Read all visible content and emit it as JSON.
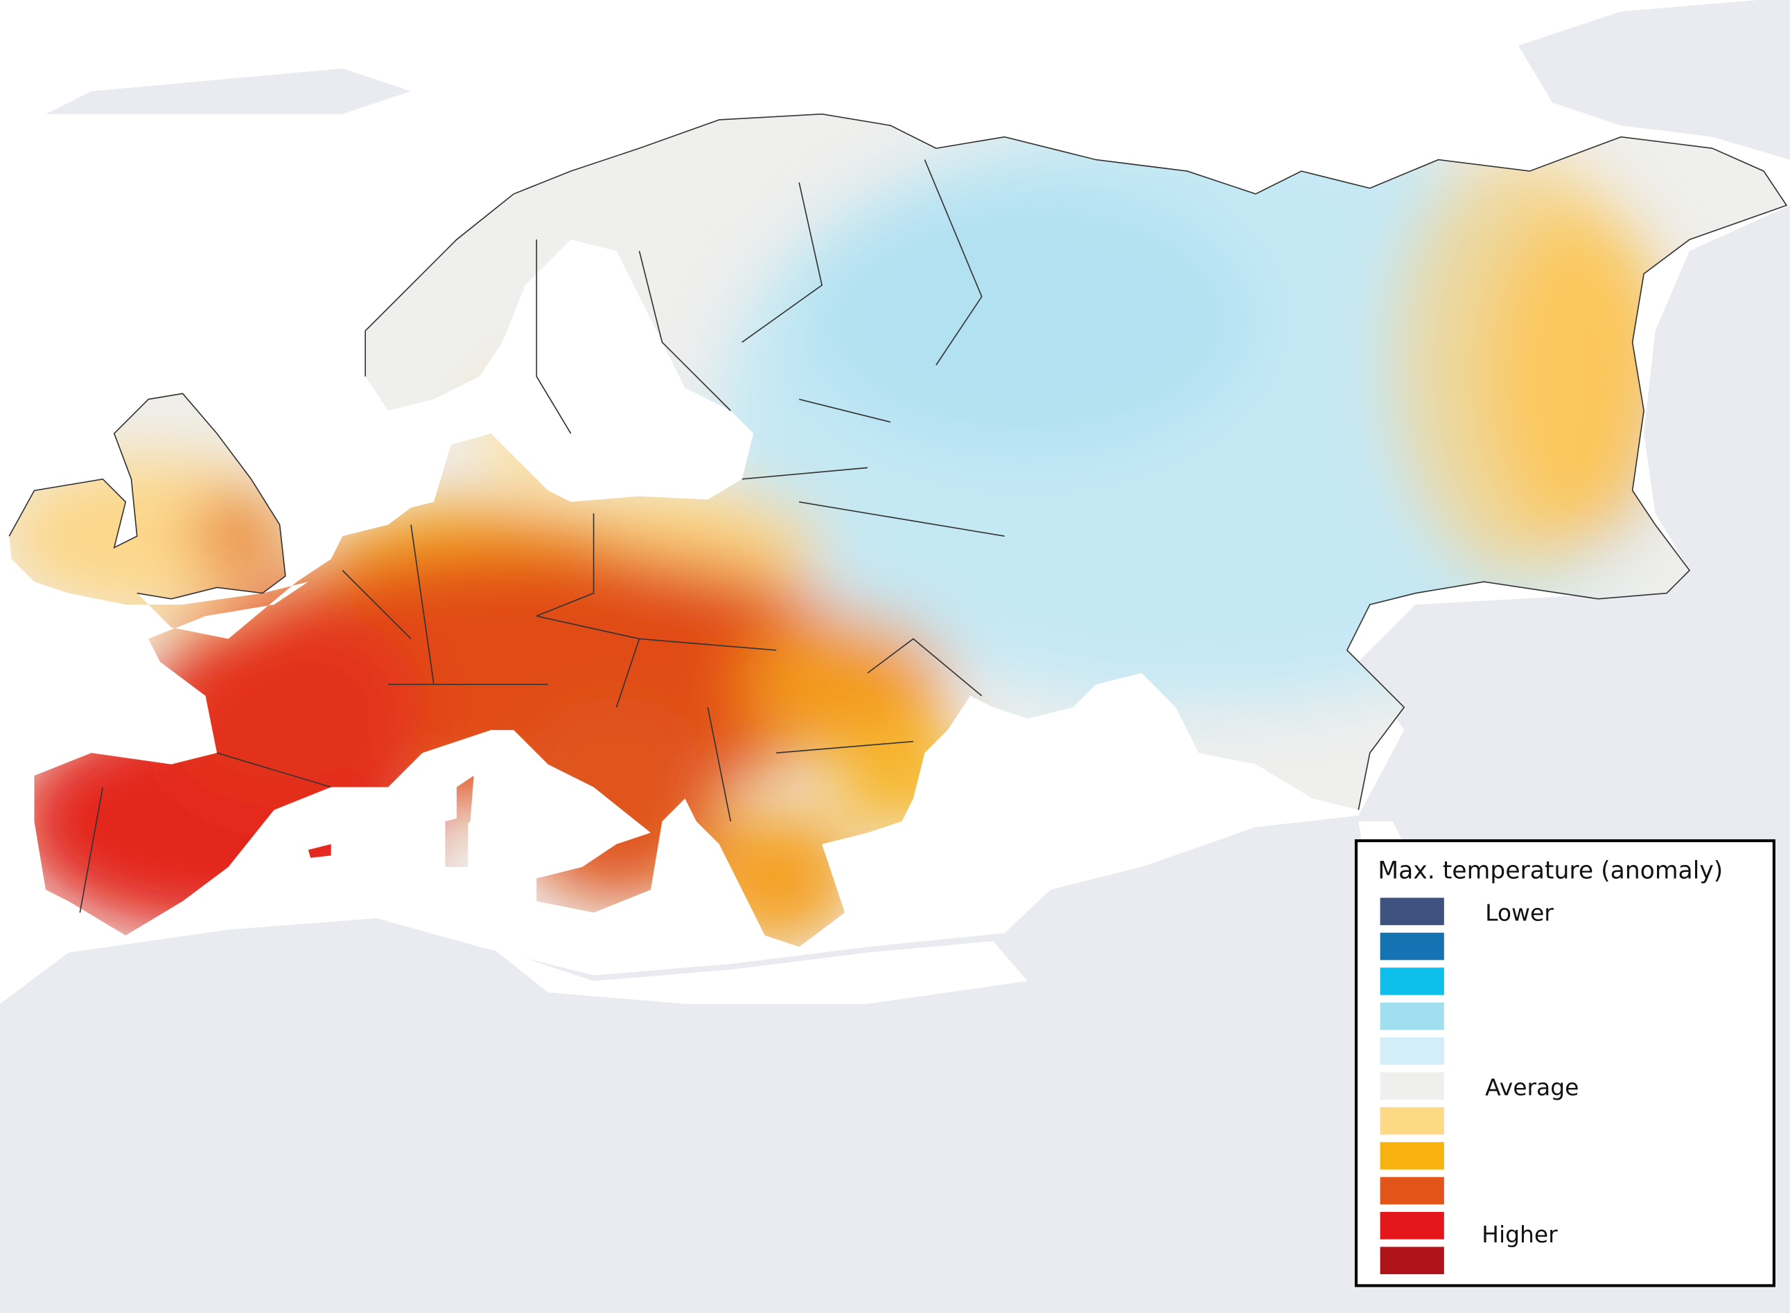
{
  "legend": {
    "title": "Max. temperature (anomaly)",
    "items": [
      {
        "color": "#3f517e",
        "label": "Lower"
      },
      {
        "color": "#1673b3"
      },
      {
        "color": "#0ebfeb"
      },
      {
        "color": "#a0dff0"
      },
      {
        "color": "#d3eef8"
      },
      {
        "color": "#efefed",
        "label": "Average"
      },
      {
        "color": "#fdd985"
      },
      {
        "color": "#f8b20f"
      },
      {
        "color": "#e2541a"
      },
      {
        "color": "#e3161a"
      },
      {
        "color": "#b0141a",
        "label": "Higher"
      }
    ]
  }
}
